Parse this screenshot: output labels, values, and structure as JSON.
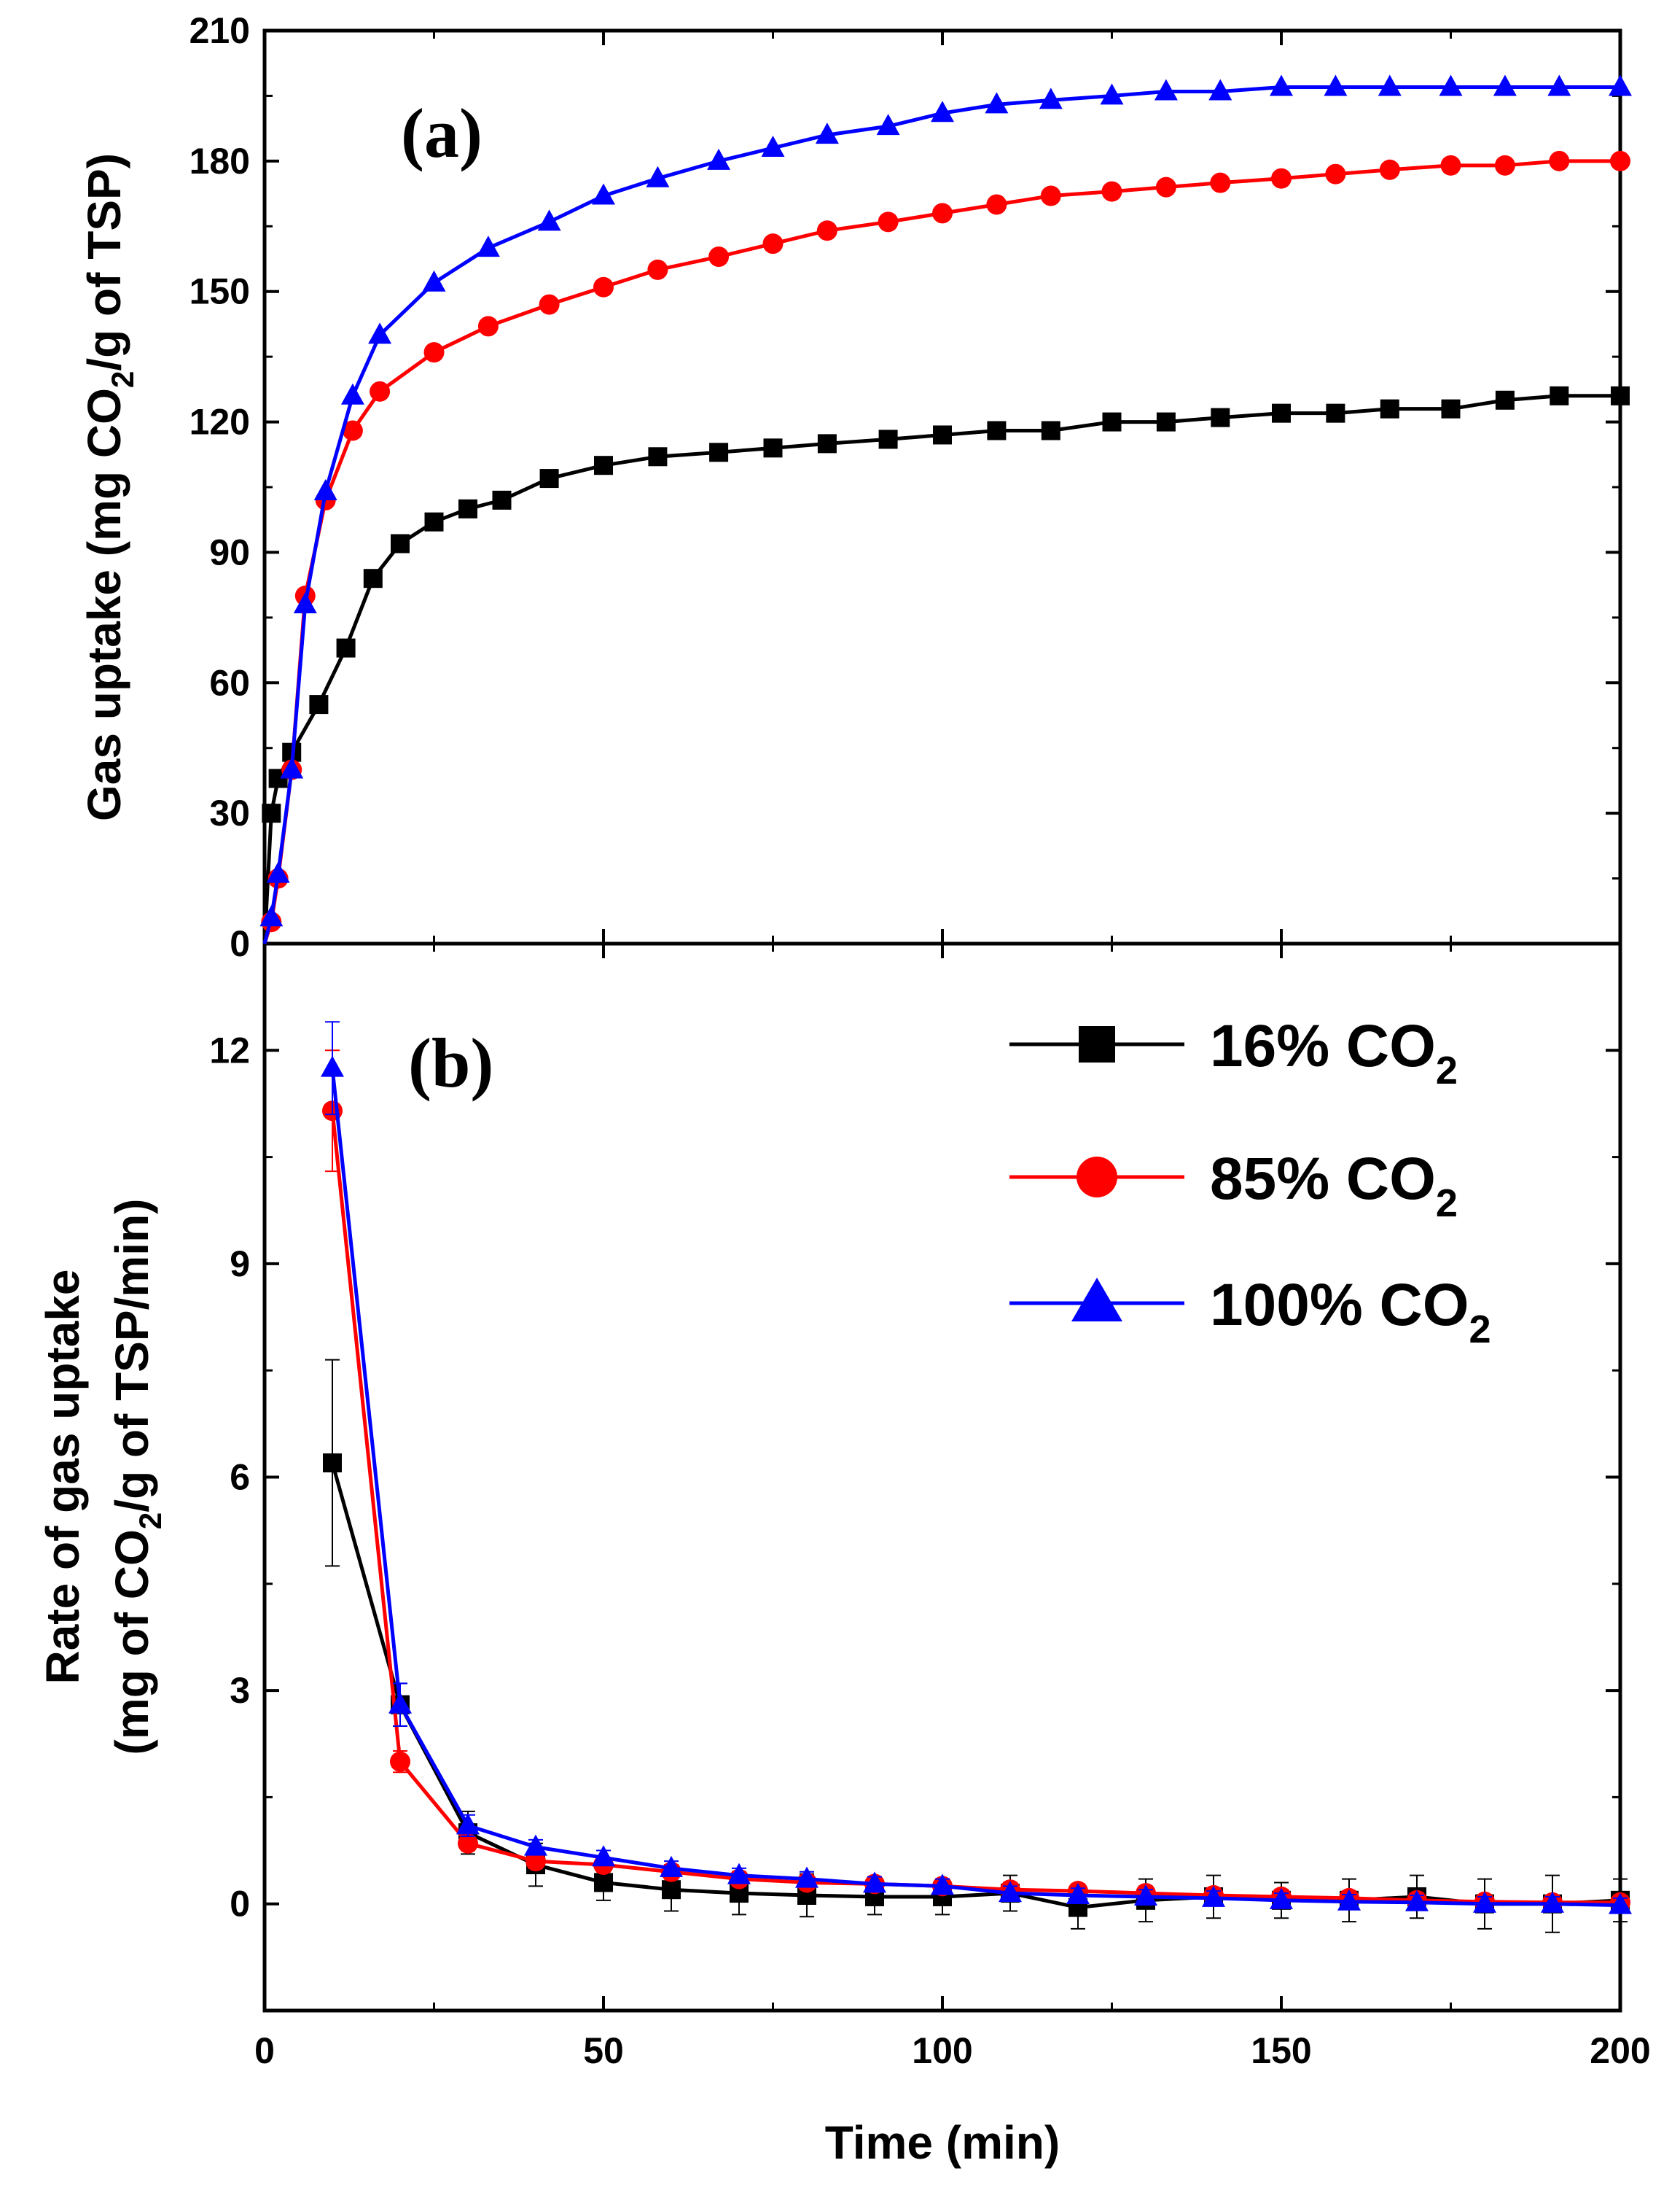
{
  "chart_data": [
    {
      "panel": "a",
      "type": "line",
      "title": "",
      "panel_label": "(a)",
      "xlabel": "Time (min)",
      "ylabel_parts": [
        "Gas uptake (mg CO",
        "2",
        "/g of TSP)"
      ],
      "xlim": [
        0,
        200
      ],
      "ylim": [
        0,
        210
      ],
      "yticks": [
        0,
        30,
        60,
        90,
        120,
        150,
        180,
        210
      ],
      "xticks": [
        0,
        50,
        100,
        150,
        200
      ],
      "series": [
        {
          "name": "16% CO2",
          "color": "#000000",
          "marker": "square",
          "x": [
            0,
            1,
            2,
            4,
            8,
            12,
            16,
            20,
            25,
            30,
            35,
            42,
            50,
            58,
            67,
            75,
            83,
            92,
            100,
            108,
            116,
            125,
            133,
            141,
            150,
            158,
            166,
            175,
            183,
            191,
            200
          ],
          "y": [
            0,
            30,
            38,
            44,
            55,
            68,
            84,
            92,
            97,
            100,
            102,
            107,
            110,
            112,
            113,
            114,
            115,
            116,
            117,
            118,
            118,
            120,
            120,
            121,
            122,
            122,
            123,
            123,
            125,
            126,
            126
          ]
        },
        {
          "name": "85% CO2",
          "color": "#ff0000",
          "marker": "circle",
          "x": [
            0,
            1,
            2,
            4,
            6,
            9,
            13,
            17,
            25,
            33,
            42,
            50,
            58,
            67,
            75,
            83,
            92,
            100,
            108,
            116,
            125,
            133,
            141,
            150,
            158,
            166,
            175,
            183,
            191,
            200
          ],
          "y": [
            0,
            5,
            15,
            40,
            80,
            102,
            118,
            127,
            136,
            142,
            147,
            151,
            155,
            158,
            161,
            164,
            166,
            168,
            170,
            172,
            173,
            174,
            175,
            176,
            177,
            178,
            179,
            179,
            180,
            180
          ]
        },
        {
          "name": "100% CO2",
          "color": "#0000ff",
          "marker": "triangle",
          "x": [
            0,
            1,
            2,
            4,
            6,
            9,
            13,
            17,
            25,
            33,
            42,
            50,
            58,
            67,
            75,
            83,
            92,
            100,
            108,
            116,
            125,
            133,
            141,
            150,
            158,
            166,
            175,
            183,
            191,
            200
          ],
          "y": [
            0,
            6,
            16,
            40,
            78,
            104,
            126,
            140,
            152,
            160,
            166,
            172,
            176,
            180,
            183,
            186,
            188,
            191,
            193,
            194,
            195,
            196,
            196,
            197,
            197,
            197,
            197,
            197,
            197,
            197
          ]
        }
      ]
    },
    {
      "panel": "b",
      "type": "line",
      "title": "",
      "panel_label": "(b)",
      "xlabel": "Time (min)",
      "ylabel_line1": "Rate of gas uptake",
      "ylabel_line2_parts": [
        "(mg of CO",
        "2",
        "/g of TSP/min)"
      ],
      "xlim": [
        0,
        200
      ],
      "ylim": [
        -1.5,
        13.5
      ],
      "yticks": [
        0,
        3,
        6,
        9,
        12
      ],
      "xticks": [
        0,
        50,
        100,
        150,
        200
      ],
      "x_tick_labels": [
        "0",
        "50",
        "100",
        "150",
        "200"
      ],
      "legend": {
        "position": "top-right",
        "entries": [
          {
            "prefix": "16% CO",
            "sub": "2",
            "color": "#000000",
            "marker": "square"
          },
          {
            "prefix": "85% CO",
            "sub": "2",
            "color": "#ff0000",
            "marker": "circle"
          },
          {
            "prefix": "100% CO",
            "sub": "2",
            "color": "#0000ff",
            "marker": "triangle"
          }
        ]
      },
      "series": [
        {
          "name": "16% CO2",
          "color": "#000000",
          "marker": "square",
          "x": [
            10,
            20,
            30,
            40,
            50,
            60,
            70,
            80,
            90,
            100,
            110,
            120,
            130,
            140,
            150,
            160,
            170,
            180,
            190,
            200
          ],
          "y": [
            6.2,
            2.8,
            1.0,
            0.55,
            0.3,
            0.2,
            0.15,
            0.12,
            0.1,
            0.1,
            0.15,
            -0.05,
            0.05,
            0.1,
            0.05,
            0.05,
            0.1,
            0.0,
            0.0,
            0.05
          ],
          "err": [
            1.45,
            0.3,
            0.3,
            0.3,
            0.25,
            0.3,
            0.3,
            0.3,
            0.25,
            0.25,
            0.25,
            0.3,
            0.3,
            0.3,
            0.25,
            0.3,
            0.3,
            0.35,
            0.4,
            0.3
          ]
        },
        {
          "name": "85% CO2",
          "color": "#ff0000",
          "marker": "circle",
          "x": [
            10,
            20,
            30,
            40,
            50,
            60,
            70,
            80,
            90,
            100,
            110,
            120,
            130,
            140,
            150,
            160,
            170,
            180,
            190,
            200
          ],
          "y": [
            11.15,
            2.0,
            0.85,
            0.6,
            0.55,
            0.45,
            0.35,
            0.3,
            0.28,
            0.25,
            0.2,
            0.18,
            0.15,
            0.12,
            0.1,
            0.08,
            0.05,
            0.03,
            0.02,
            0.02
          ],
          "err": [
            0.85,
            0.15,
            0.1,
            0.1,
            0.1,
            0.1,
            0.1,
            0.1,
            0.1,
            0.1,
            0.1,
            0.1,
            0.1,
            0.1,
            0.1,
            0.1,
            0.1,
            0.1,
            0.1,
            0.1
          ]
        },
        {
          "name": "100% CO2",
          "color": "#0000ff",
          "marker": "triangle",
          "x": [
            10,
            20,
            30,
            40,
            50,
            60,
            70,
            80,
            90,
            100,
            110,
            120,
            130,
            140,
            150,
            160,
            170,
            180,
            190,
            200
          ],
          "y": [
            11.75,
            2.8,
            1.1,
            0.8,
            0.65,
            0.5,
            0.4,
            0.35,
            0.28,
            0.25,
            0.15,
            0.12,
            0.1,
            0.08,
            0.05,
            0.03,
            0.02,
            0.0,
            0.0,
            -0.02
          ],
          "err": [
            0.65,
            0.3,
            0.15,
            0.1,
            0.1,
            0.1,
            0.1,
            0.1,
            0.1,
            0.1,
            0.1,
            0.1,
            0.1,
            0.1,
            0.1,
            0.1,
            0.1,
            0.1,
            0.1,
            0.1
          ]
        }
      ]
    }
  ]
}
